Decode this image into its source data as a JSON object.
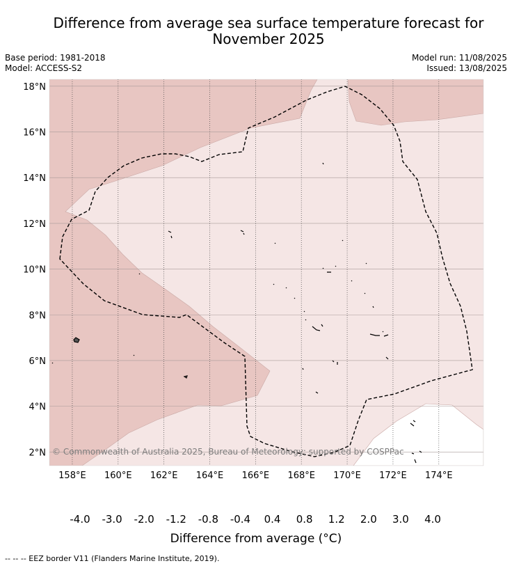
{
  "title_line1": "Difference from average sea surface temperature forecast for",
  "title_line2": "November 2025",
  "meta": {
    "base_period": "Base period: 1981-2018",
    "model": "Model: ACCESS-S2",
    "model_run": "Model run: 11/08/2025",
    "issued": "Issued: 13/08/2025"
  },
  "map": {
    "lat_labels": [
      "18°N",
      "16°N",
      "14°N",
      "12°N",
      "10°N",
      "8°N",
      "6°N",
      "4°N",
      "2°N"
    ],
    "lon_labels": [
      "158°E",
      "160°E",
      "162°E",
      "164°E",
      "166°E",
      "168°E",
      "170°E",
      "172°E",
      "174°E"
    ],
    "lat_range": [
      1.4,
      18.3
    ],
    "lon_range": [
      157.0,
      175.95
    ],
    "copyright": "© Commonwealth of Australia 2025, Bureau of Meteorology; supported by COSPPac",
    "colors": {
      "anom_0_4_0_8": "#f5e6e5",
      "anom_0_8_1_2": "#e8c6c2",
      "neutral": "#ffffff"
    }
  },
  "colorbar": {
    "labels": [
      "-4.0",
      "-3.0",
      "-2.0",
      "-1.2",
      "-0.8",
      "-0.4",
      "0.4",
      "0.8",
      "1.2",
      "2.0",
      "3.0",
      "4.0"
    ],
    "colors": [
      "#3f818d",
      "#4aa3b4",
      "#6aafbd",
      "#8bb9c4",
      "#a8c8cc",
      "#cfd9da",
      "#ffffff",
      "#f5e6e5",
      "#e8c6c2",
      "#d88f95",
      "#cb6670",
      "#c04452",
      "#b1203c"
    ],
    "title": "Difference from average (°C)"
  },
  "footnote": "--  --  -- EEZ border V11 (Flanders Marine Institute, 2019)."
}
